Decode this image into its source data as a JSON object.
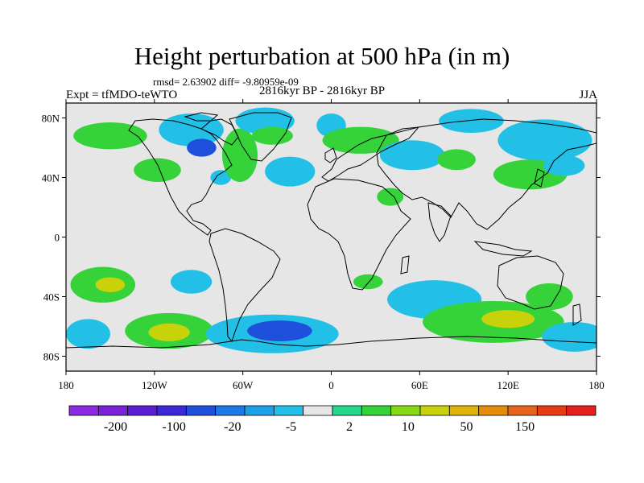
{
  "title": "Height perturbation at 500 hPa (in m)",
  "stats": "rmsd= 2.63902 diff= -9.80959e-09",
  "experiment": "Expt = tfMDO-teWTO",
  "period": "2816kyr BP - 2816kyr BP",
  "season": "JJA",
  "map": {
    "lon_range": [
      -180,
      180
    ],
    "lat_range": [
      -90,
      90
    ],
    "lon_ticks": [
      {
        "value": -180,
        "label": "180"
      },
      {
        "value": -120,
        "label": "120W"
      },
      {
        "value": -60,
        "label": "60W"
      },
      {
        "value": 0,
        "label": "0"
      },
      {
        "value": 60,
        "label": "60E"
      },
      {
        "value": 120,
        "label": "120E"
      },
      {
        "value": 180,
        "label": "180"
      }
    ],
    "lat_ticks": [
      {
        "value": 80,
        "label": "80N"
      },
      {
        "value": 40,
        "label": "40N"
      },
      {
        "value": 0,
        "label": "0"
      },
      {
        "value": -40,
        "label": "40S"
      },
      {
        "value": -80,
        "label": "80S"
      }
    ]
  },
  "colorbar": {
    "colors": [
      "#8a2be2",
      "#7a22d6",
      "#5a1ed0",
      "#3b28d8",
      "#1e50dc",
      "#1e78e6",
      "#1ea0e8",
      "#22c0e6",
      "#e6e6e6",
      "#23d88c",
      "#35d23a",
      "#88d815",
      "#c8d20a",
      "#e0b40a",
      "#e68c0a",
      "#e6641e",
      "#e63c14",
      "#e61e1e"
    ],
    "labels": [
      "-200",
      "-100",
      "-20",
      "-5",
      "2",
      "10",
      "50",
      "150"
    ]
  },
  "regions": [
    {
      "lon": -150,
      "lat": 68,
      "rlon": 25,
      "rlat": 9,
      "level": 10
    },
    {
      "lon": -118,
      "lat": 45,
      "rlon": 16,
      "rlat": 8,
      "level": 10
    },
    {
      "lon": -95,
      "lat": 72,
      "rlon": 22,
      "rlat": 11,
      "level": -5
    },
    {
      "lon": -88,
      "lat": 60,
      "rlon": 10,
      "rlat": 6,
      "level": -20
    },
    {
      "lon": -75,
      "lat": 40,
      "rlon": 7,
      "rlat": 5,
      "level": -5
    },
    {
      "lon": -62,
      "lat": 55,
      "rlon": 12,
      "rlat": 18,
      "level": 10
    },
    {
      "lon": -45,
      "lat": 78,
      "rlon": 20,
      "rlat": 9,
      "level": -5
    },
    {
      "lon": -40,
      "lat": 68,
      "rlon": 14,
      "rlat": 6,
      "level": 10
    },
    {
      "lon": -28,
      "lat": 44,
      "rlon": 17,
      "rlat": 10,
      "level": -5
    },
    {
      "lon": 0,
      "lat": 75,
      "rlon": 10,
      "rlat": 8,
      "level": -5
    },
    {
      "lon": 20,
      "lat": 65,
      "rlon": 26,
      "rlat": 9,
      "level": 10
    },
    {
      "lon": 55,
      "lat": 55,
      "rlon": 22,
      "rlat": 10,
      "level": -5
    },
    {
      "lon": 85,
      "lat": 52,
      "rlon": 13,
      "rlat": 7,
      "level": 10
    },
    {
      "lon": 95,
      "lat": 78,
      "rlon": 22,
      "rlat": 8,
      "level": -5
    },
    {
      "lon": 40,
      "lat": 27,
      "rlon": 9,
      "rlat": 6,
      "level": 10
    },
    {
      "lon": 145,
      "lat": 65,
      "rlon": 32,
      "rlat": 14,
      "level": -5
    },
    {
      "lon": 135,
      "lat": 42,
      "rlon": 25,
      "rlat": 10,
      "level": 10
    },
    {
      "lon": 158,
      "lat": 48,
      "rlon": 14,
      "rlat": 7,
      "level": -5
    },
    {
      "lon": -155,
      "lat": -32,
      "rlon": 22,
      "rlat": 12,
      "level": 10
    },
    {
      "lon": -150,
      "lat": -32,
      "rlon": 10,
      "rlat": 5,
      "level": 50
    },
    {
      "lon": -95,
      "lat": -30,
      "rlon": 14,
      "rlat": 8,
      "level": -5
    },
    {
      "lon": -110,
      "lat": -63,
      "rlon": 30,
      "rlat": 12,
      "level": 10
    },
    {
      "lon": -110,
      "lat": -64,
      "rlon": 14,
      "rlat": 6,
      "level": 50
    },
    {
      "lon": -165,
      "lat": -65,
      "rlon": 15,
      "rlat": 10,
      "level": -5
    },
    {
      "lon": -40,
      "lat": -65,
      "rlon": 45,
      "rlat": 13,
      "level": -5
    },
    {
      "lon": -35,
      "lat": -63,
      "rlon": 22,
      "rlat": 7,
      "level": -20
    },
    {
      "lon": 25,
      "lat": -30,
      "rlon": 10,
      "rlat": 5,
      "level": 10
    },
    {
      "lon": 70,
      "lat": -42,
      "rlon": 32,
      "rlat": 13,
      "level": -5
    },
    {
      "lon": 110,
      "lat": -57,
      "rlon": 48,
      "rlat": 14,
      "level": 10
    },
    {
      "lon": 120,
      "lat": -55,
      "rlon": 18,
      "rlat": 6,
      "level": 50
    },
    {
      "lon": 165,
      "lat": -67,
      "rlon": 22,
      "rlat": 10,
      "level": -5
    },
    {
      "lon": 148,
      "lat": -40,
      "rlon": 16,
      "rlat": 9,
      "level": 10
    }
  ]
}
